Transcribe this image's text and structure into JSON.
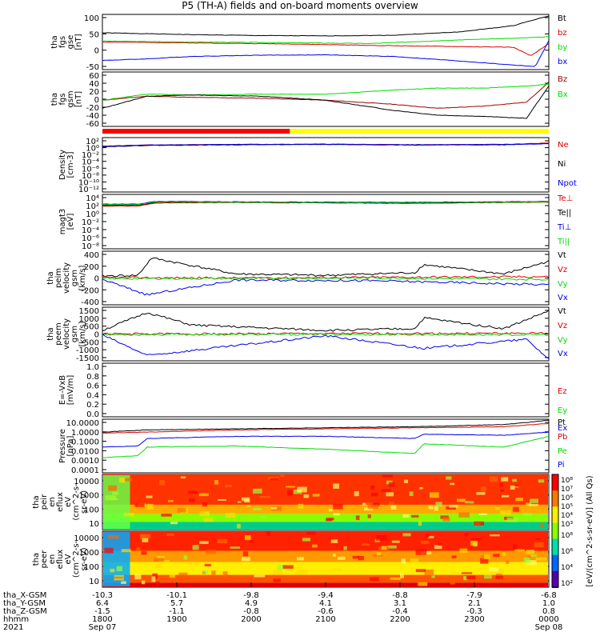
{
  "title": "P5 (TH-A) fields and on-board moments overview",
  "colors": {
    "black": "#000000",
    "red": "#dd0000",
    "green": "#00dd00",
    "blue": "#0000ee",
    "yellow": "#ffff00",
    "redbar": "#ff0000",
    "darkred": "#990000"
  },
  "chart_data": [
    {
      "id": "p1",
      "type": "line",
      "ylabel": [
        "tha",
        "fgs",
        "gse",
        "[nT]"
      ],
      "yticks": [
        "100",
        "50",
        "0",
        "-50"
      ],
      "yrange": [
        -75,
        105
      ],
      "series": [
        {
          "name": "Bt",
          "color": "#000000",
          "x": [
            0,
            0.1,
            0.2,
            0.35,
            0.5,
            0.65,
            0.8,
            0.92,
            0.96,
            1.0
          ],
          "y": [
            45,
            42,
            39,
            36,
            35,
            37,
            48,
            68,
            85,
            100
          ]
        },
        {
          "name": "bz",
          "color": "#dd0000",
          "x": [
            0,
            0.2,
            0.4,
            0.6,
            0.8,
            0.92,
            0.96,
            1.0
          ],
          "y": [
            15,
            12,
            9,
            4,
            0,
            -2,
            -30,
            10
          ]
        },
        {
          "name": "by",
          "color": "#00dd00",
          "x": [
            0,
            0.2,
            0.4,
            0.6,
            0.8,
            0.92,
            0.97,
            1.0
          ],
          "y": [
            18,
            15,
            13,
            10,
            22,
            27,
            30,
            32
          ]
        },
        {
          "name": "bx",
          "color": "#0000ee",
          "x": [
            0,
            0.1,
            0.2,
            0.35,
            0.5,
            0.65,
            0.8,
            0.92,
            0.97,
            1.0
          ],
          "y": [
            -45,
            -40,
            -32,
            -28,
            -27,
            -32,
            -47,
            -60,
            -65,
            20
          ]
        }
      ]
    },
    {
      "id": "p2",
      "type": "line",
      "ylabel": [
        "tha",
        "fgs",
        "gsm",
        "[nT]"
      ],
      "yticks": [
        "60",
        "40",
        "20",
        "0",
        "-20",
        "-40",
        "-60"
      ],
      "yrange": [
        -70,
        65
      ],
      "series": [
        {
          "name": "Bz",
          "color": "#990000",
          "x": [
            0,
            0.1,
            0.2,
            0.35,
            0.5,
            0.65,
            0.75,
            0.85,
            0.95,
            1.0
          ],
          "y": [
            -5,
            5,
            2,
            0,
            -5,
            -15,
            -25,
            -20,
            -10,
            40
          ]
        },
        {
          "name": "Bx",
          "color": "#00dd00",
          "x": [
            0,
            0.1,
            0.2,
            0.35,
            0.5,
            0.65,
            0.75,
            0.85,
            0.95,
            1.0
          ],
          "y": [
            -5,
            10,
            8,
            10,
            10,
            20,
            25,
            25,
            30,
            35
          ]
        },
        {
          "name": "",
          "color": "#000000",
          "x": [
            0,
            0.1,
            0.2,
            0.35,
            0.5,
            0.65,
            0.75,
            0.85,
            0.95,
            1.0
          ],
          "y": [
            -25,
            5,
            8,
            5,
            -5,
            -30,
            -42,
            -45,
            -50,
            30
          ]
        }
      ]
    },
    {
      "id": "p3",
      "type": "line",
      "scale": "log",
      "ylabel": [
        "Density",
        "[cm-3]"
      ],
      "yticks": [
        "10²",
        "10⁰",
        "10⁻²",
        "10⁻⁴",
        "10⁻⁶",
        "10⁻⁸",
        "10⁻¹⁰",
        "10⁻¹²"
      ],
      "yrange": [
        -13,
        3
      ],
      "series": [
        {
          "name": "Ne",
          "color": "#dd0000",
          "x": [
            0,
            0.1,
            0.3,
            0.5,
            0.7,
            0.9,
            1.0
          ],
          "y": [
            0.5,
            0.8,
            1.0,
            1.1,
            0.9,
            1.0,
            1.4
          ]
        },
        {
          "name": "Ni",
          "color": "#000000",
          "x": [
            0,
            0.1,
            0.3,
            0.5,
            0.7,
            0.9,
            1.0
          ],
          "y": [
            0.3,
            0.7,
            0.9,
            1.0,
            0.8,
            0.9,
            1.3
          ]
        },
        {
          "name": "Npot",
          "color": "#0000ee",
          "x": [
            0,
            0.1,
            0.3,
            0.5,
            0.7,
            0.9,
            1.0
          ],
          "y": [
            0.4,
            0.8,
            1.0,
            1.0,
            0.9,
            1.0,
            1.2
          ]
        }
      ]
    },
    {
      "id": "p4",
      "type": "line",
      "scale": "log",
      "ylabel": [
        "magt3",
        "[eV]"
      ],
      "yticks": [
        "10⁴",
        "10²",
        "10⁰",
        "10⁻²",
        "10⁻⁴",
        "10⁻⁶",
        "10⁻⁸"
      ],
      "yrange": [
        -9,
        5
      ],
      "series": [
        {
          "name": "Te⊥",
          "color": "#dd0000",
          "x": [
            0,
            0.08,
            0.12,
            0.3,
            0.5,
            0.7,
            0.9,
            1.0
          ],
          "y": [
            2.0,
            2.0,
            2.8,
            2.9,
            2.8,
            2.7,
            2.9,
            3.0
          ]
        },
        {
          "name": "Te||",
          "color": "#000000",
          "x": [
            0,
            0.08,
            0.12,
            0.3,
            0.5,
            0.7,
            0.9,
            1.0
          ],
          "y": [
            2.2,
            2.2,
            3.0,
            3.0,
            2.9,
            2.8,
            3.0,
            3.1
          ]
        },
        {
          "name": "Ti⊥",
          "color": "#0000ee",
          "x": [
            0,
            0.08,
            0.12,
            0.3,
            0.5,
            0.7,
            0.9,
            1.0
          ],
          "y": [
            2.5,
            2.5,
            3.2,
            3.1,
            3.0,
            3.0,
            3.1,
            3.2
          ]
        },
        {
          "name": "Ti||",
          "color": "#00dd00",
          "x": [
            0,
            0.08,
            0.12,
            0.3,
            0.5,
            0.7,
            0.9,
            1.0
          ],
          "y": [
            2.4,
            2.4,
            3.1,
            3.0,
            2.9,
            2.9,
            3.0,
            3.1
          ]
        }
      ]
    },
    {
      "id": "p5",
      "type": "line",
      "ylabel": [
        "tha",
        "peim",
        "velocity",
        "gsm",
        "[km/s]"
      ],
      "yticks": [
        "400",
        "200",
        "0",
        "-200",
        "-400"
      ],
      "yrange": [
        -400,
        400
      ],
      "series": [
        {
          "name": "Vt",
          "color": "#000000",
          "x": [
            0,
            0.08,
            0.11,
            0.3,
            0.5,
            0.7,
            0.72,
            0.9,
            1.0
          ],
          "y": [
            30,
            40,
            300,
            60,
            40,
            80,
            200,
            60,
            250
          ]
        },
        {
          "name": "Vz",
          "color": "#dd0000",
          "x": [
            0,
            0.3,
            0.6,
            1.0
          ],
          "y": [
            5,
            0,
            10,
            20
          ]
        },
        {
          "name": "Vy",
          "color": "#00dd00",
          "x": [
            0,
            0.3,
            0.6,
            1.0
          ],
          "y": [
            -10,
            -5,
            0,
            -20
          ]
        },
        {
          "name": "Vx",
          "color": "#0000ee",
          "x": [
            0,
            0.1,
            0.3,
            0.6,
            1.0
          ],
          "y": [
            -20,
            -250,
            -30,
            -40,
            -100
          ]
        }
      ]
    },
    {
      "id": "p6",
      "type": "line",
      "ylabel": [
        "tha",
        "peem",
        "velocity",
        "gsm",
        "[km/s]"
      ],
      "yticks": [
        "1500",
        "1000",
        "500",
        "0",
        "-500",
        "-1000",
        "-1500"
      ],
      "yrange": [
        -1500,
        1500
      ],
      "series": [
        {
          "name": "Vt",
          "color": "#000000",
          "x": [
            0,
            0.1,
            0.2,
            0.5,
            0.7,
            0.72,
            0.9,
            1.0
          ],
          "y": [
            200,
            1200,
            500,
            200,
            300,
            900,
            300,
            1300
          ]
        },
        {
          "name": "Vz",
          "color": "#dd0000",
          "x": [
            0,
            0.5,
            1.0
          ],
          "y": [
            0,
            20,
            40
          ]
        },
        {
          "name": "Vy",
          "color": "#00dd00",
          "x": [
            0,
            0.5,
            1.0
          ],
          "y": [
            -30,
            -20,
            -40
          ]
        },
        {
          "name": "Vx",
          "color": "#0000ee",
          "x": [
            0,
            0.1,
            0.5,
            0.72,
            0.95,
            1.0
          ],
          "y": [
            -50,
            -1200,
            -100,
            -800,
            -300,
            -1400
          ]
        }
      ]
    },
    {
      "id": "p7",
      "type": "line",
      "ylabel": [
        "E=-VxB",
        "[mV/m]"
      ],
      "yticks": [
        "1.0",
        "0.8",
        "0.6",
        "0.4",
        "0.2",
        "0.0"
      ],
      "yrange": [
        0,
        1.0
      ],
      "series": [
        {
          "name": "Ez",
          "color": "#dd0000",
          "x": [],
          "y": []
        },
        {
          "name": "Ey",
          "color": "#00dd00",
          "x": [],
          "y": []
        },
        {
          "name": "Ex",
          "color": "#0000ee",
          "x": [],
          "y": []
        }
      ]
    },
    {
      "id": "p8",
      "type": "line",
      "scale": "log",
      "ylabel": [
        "Pressure",
        "[nPa]"
      ],
      "yticks": [
        "10.0000",
        "1.0000",
        "0.1000",
        "0.0100",
        "0.0010",
        "0.0001"
      ],
      "yrange": [
        -4,
        1
      ],
      "series": [
        {
          "name": "Pt",
          "color": "#000000",
          "x": [
            0,
            0.1,
            0.3,
            0.5,
            0.7,
            0.9,
            1.0
          ],
          "y": [
            -0.2,
            0.0,
            0.1,
            0.2,
            0.3,
            0.5,
            0.9
          ]
        },
        {
          "name": "Pb",
          "color": "#dd0000",
          "x": [
            0,
            0.1,
            0.3,
            0.5,
            0.7,
            0.9,
            1.0
          ],
          "y": [
            -0.3,
            -0.2,
            0.0,
            0.1,
            0.2,
            0.3,
            0.6
          ]
        },
        {
          "name": "Pe",
          "color": "#00dd00",
          "x": [
            0,
            0.08,
            0.1,
            0.3,
            0.5,
            0.7,
            0.72,
            0.9,
            1.0
          ],
          "y": [
            -2.6,
            -2.4,
            -1.6,
            -1.5,
            -1.8,
            -2.2,
            -1.3,
            -1.6,
            -0.6
          ]
        },
        {
          "name": "Pi",
          "color": "#0000ee",
          "x": [
            0,
            0.08,
            0.1,
            0.3,
            0.5,
            0.7,
            0.72,
            0.9,
            1.0
          ],
          "y": [
            -1.6,
            -1.5,
            -0.8,
            -0.6,
            -0.6,
            -0.8,
            -0.4,
            -0.5,
            -0.2
          ]
        }
      ]
    },
    {
      "id": "p9",
      "type": "heatmap",
      "ylabel": [
        "tha",
        "peir",
        "en",
        "eflux",
        "eV",
        "(cm^2-s-",
        "sr-eV)"
      ],
      "yticks": [
        "10000",
        "1000",
        "100",
        "10"
      ]
    },
    {
      "id": "p10",
      "type": "heatmap",
      "ylabel": [
        "tha",
        "peer",
        "en",
        "eflux",
        "eV",
        "(cm^2-s-",
        "sr-eV)"
      ],
      "yticks": [
        "10000",
        "1000",
        "100",
        "10"
      ]
    }
  ],
  "colorbar": {
    "label": "[eV/(cm^2-s-sr-eV)] (All Qs)",
    "ticks_top": [
      "10⁸",
      "10⁷",
      "10⁶",
      "10⁵",
      "10⁴",
      "10³"
    ],
    "ticks_bottom": [
      "10⁸",
      "10⁶",
      "10⁴",
      "10²"
    ]
  },
  "xaxis": {
    "row_labels": [
      "tha_X-GSM",
      "tha_Y-GSM",
      "tha_Z-GSM",
      "hhmm",
      "2021"
    ],
    "columns": [
      [
        "-10.3",
        "6.4",
        "-1.5",
        "1800",
        "Sep 07"
      ],
      [
        "-10.1",
        "5.7",
        "-1.1",
        "1900",
        ""
      ],
      [
        "-9.8",
        "4.9",
        "-0.8",
        "2000",
        ""
      ],
      [
        "-9.4",
        "4.1",
        "-0.6",
        "2100",
        ""
      ],
      [
        "-8.8",
        "3.1",
        "-0.4",
        "2200",
        ""
      ],
      [
        "-7.9",
        "2.1",
        "-0.3",
        "2300",
        ""
      ],
      [
        "-6.8",
        "1.0",
        "0.8",
        "0000",
        "Sep 08"
      ]
    ]
  },
  "mode_bar": {
    "red_fraction": 0.42
  }
}
